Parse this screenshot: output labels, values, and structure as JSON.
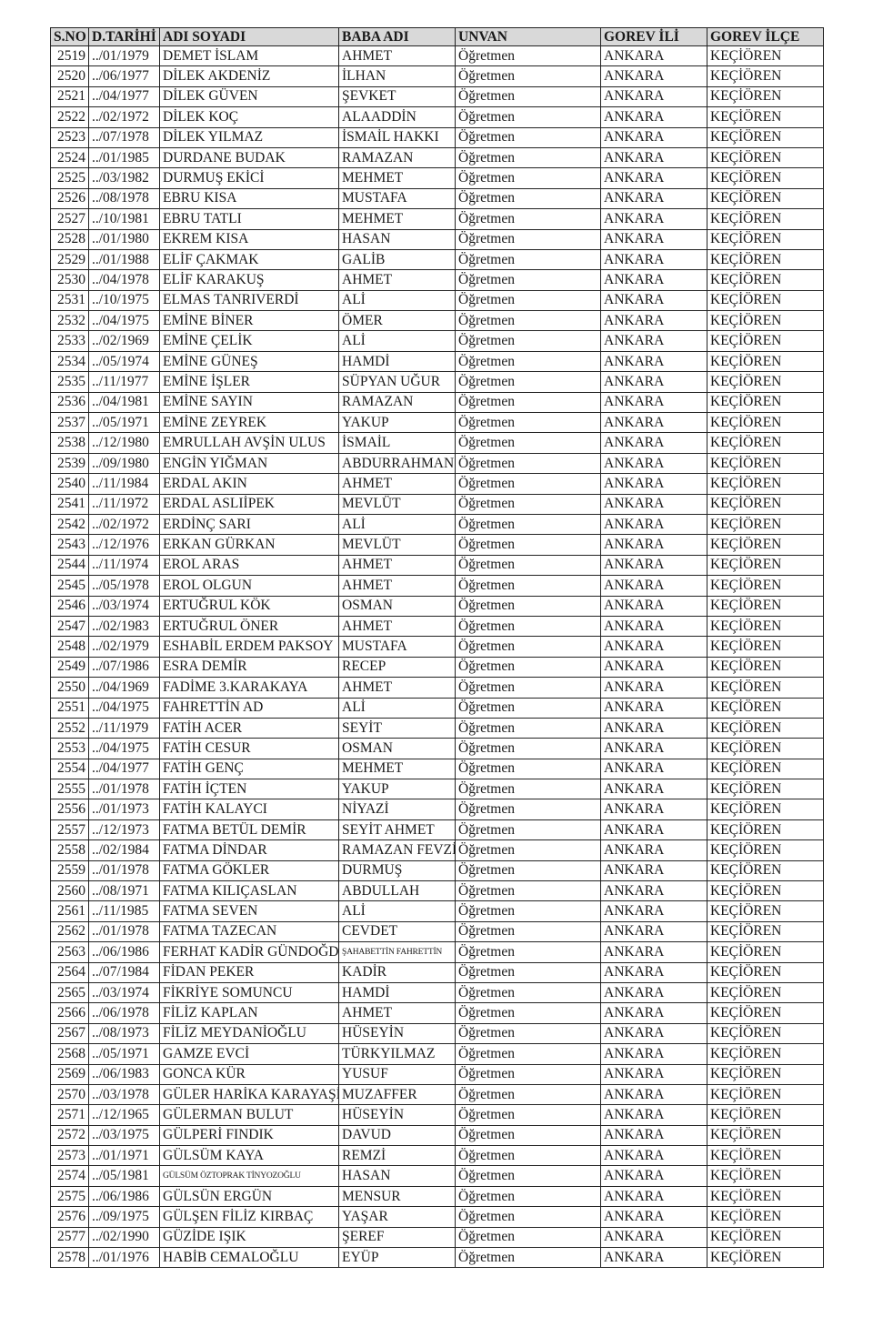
{
  "table": {
    "headers": [
      "S.NO",
      "D.TARİHİ",
      "ADI SOYADI",
      "BABA ADI",
      "UNVAN",
      "GOREV İLİ",
      "GOREV İLÇE"
    ],
    "rows": [
      [
        "2519",
        "../01/1979",
        "DEMET İSLAM",
        "AHMET",
        "Öğretmen",
        "ANKARA",
        "KEÇİÖREN"
      ],
      [
        "2520",
        "../06/1977",
        "DİLEK AKDENİZ",
        "İLHAN",
        "Öğretmen",
        "ANKARA",
        "KEÇİÖREN"
      ],
      [
        "2521",
        "../04/1977",
        "DİLEK GÜVEN",
        "ŞEVKET",
        "Öğretmen",
        "ANKARA",
        "KEÇİÖREN"
      ],
      [
        "2522",
        "../02/1972",
        "DİLEK KOÇ",
        "ALAADDİN",
        "Öğretmen",
        "ANKARA",
        "KEÇİÖREN"
      ],
      [
        "2523",
        "../07/1978",
        "DİLEK YILMAZ",
        "İSMAİL HAKKI",
        "Öğretmen",
        "ANKARA",
        "KEÇİÖREN"
      ],
      [
        "2524",
        "../01/1985",
        "DURDANE BUDAK",
        "RAMAZAN",
        "Öğretmen",
        "ANKARA",
        "KEÇİÖREN"
      ],
      [
        "2525",
        "../03/1982",
        "DURMUŞ EKİCİ",
        "MEHMET",
        "Öğretmen",
        "ANKARA",
        "KEÇİÖREN"
      ],
      [
        "2526",
        "../08/1978",
        "EBRU KISA",
        "MUSTAFA",
        "Öğretmen",
        "ANKARA",
        "KEÇİÖREN"
      ],
      [
        "2527",
        "../10/1981",
        "EBRU TATLI",
        "MEHMET",
        "Öğretmen",
        "ANKARA",
        "KEÇİÖREN"
      ],
      [
        "2528",
        "../01/1980",
        "EKREM KISA",
        "HASAN",
        "Öğretmen",
        "ANKARA",
        "KEÇİÖREN"
      ],
      [
        "2529",
        "../01/1988",
        "ELİF ÇAKMAK",
        "GALİB",
        "Öğretmen",
        "ANKARA",
        "KEÇİÖREN"
      ],
      [
        "2530",
        "../04/1978",
        "ELİF KARAKUŞ",
        "AHMET",
        "Öğretmen",
        "ANKARA",
        "KEÇİÖREN"
      ],
      [
        "2531",
        "../10/1975",
        "ELMAS TANRIVERDİ",
        "ALİ",
        "Öğretmen",
        "ANKARA",
        "KEÇİÖREN"
      ],
      [
        "2532",
        "../04/1975",
        "EMİNE BİNER",
        "ÖMER",
        "Öğretmen",
        "ANKARA",
        "KEÇİÖREN"
      ],
      [
        "2533",
        "../02/1969",
        "EMİNE ÇELİK",
        "ALİ",
        "Öğretmen",
        "ANKARA",
        "KEÇİÖREN"
      ],
      [
        "2534",
        "../05/1974",
        "EMİNE GÜNEŞ",
        "HAMDİ",
        "Öğretmen",
        "ANKARA",
        "KEÇİÖREN"
      ],
      [
        "2535",
        "../11/1977",
        "EMİNE İŞLER",
        "SÜPYAN UĞUR",
        "Öğretmen",
        "ANKARA",
        "KEÇİÖREN"
      ],
      [
        "2536",
        "../04/1981",
        "EMİNE SAYIN",
        "RAMAZAN",
        "Öğretmen",
        "ANKARA",
        "KEÇİÖREN"
      ],
      [
        "2537",
        "../05/1971",
        "EMİNE ZEYREK",
        "YAKUP",
        "Öğretmen",
        "ANKARA",
        "KEÇİÖREN"
      ],
      [
        "2538",
        "../12/1980",
        "EMRULLAH AVŞİN ULUS",
        "İSMAİL",
        "Öğretmen",
        "ANKARA",
        "KEÇİÖREN"
      ],
      [
        "2539",
        "../09/1980",
        "ENGİN YIĞMAN",
        "ABDURRAHMAN",
        "Öğretmen",
        "ANKARA",
        "KEÇİÖREN"
      ],
      [
        "2540",
        "../11/1984",
        "ERDAL AKIN",
        "AHMET",
        "Öğretmen",
        "ANKARA",
        "KEÇİÖREN"
      ],
      [
        "2541",
        "../11/1972",
        "ERDAL ASLIİPEK",
        "MEVLÜT",
        "Öğretmen",
        "ANKARA",
        "KEÇİÖREN"
      ],
      [
        "2542",
        "../02/1972",
        "ERDİNÇ SARI",
        "ALİ",
        "Öğretmen",
        "ANKARA",
        "KEÇİÖREN"
      ],
      [
        "2543",
        "../12/1976",
        "ERKAN GÜRKAN",
        "MEVLÜT",
        "Öğretmen",
        "ANKARA",
        "KEÇİÖREN"
      ],
      [
        "2544",
        "../11/1974",
        "EROL ARAS",
        "AHMET",
        "Öğretmen",
        "ANKARA",
        "KEÇİÖREN"
      ],
      [
        "2545",
        "../05/1978",
        "EROL OLGUN",
        "AHMET",
        "Öğretmen",
        "ANKARA",
        "KEÇİÖREN"
      ],
      [
        "2546",
        "../03/1974",
        "ERTUĞRUL KÖK",
        "OSMAN",
        "Öğretmen",
        "ANKARA",
        "KEÇİÖREN"
      ],
      [
        "2547",
        "../02/1983",
        "ERTUĞRUL ÖNER",
        "AHMET",
        "Öğretmen",
        "ANKARA",
        "KEÇİÖREN"
      ],
      [
        "2548",
        "../02/1979",
        "ESHABİL ERDEM PAKSOY",
        "MUSTAFA",
        "Öğretmen",
        "ANKARA",
        "KEÇİÖREN"
      ],
      [
        "2549",
        "../07/1986",
        "ESRA DEMİR",
        "RECEP",
        "Öğretmen",
        "ANKARA",
        "KEÇİÖREN"
      ],
      [
        "2550",
        "../04/1969",
        "FADİME 3.KARAKAYA",
        "AHMET",
        "Öğretmen",
        "ANKARA",
        "KEÇİÖREN"
      ],
      [
        "2551",
        "../04/1975",
        "FAHRETTİN AD",
        "ALİ",
        "Öğretmen",
        "ANKARA",
        "KEÇİÖREN"
      ],
      [
        "2552",
        "../11/1979",
        "FATİH ACER",
        "SEYİT",
        "Öğretmen",
        "ANKARA",
        "KEÇİÖREN"
      ],
      [
        "2553",
        "../04/1975",
        "FATİH CESUR",
        "OSMAN",
        "Öğretmen",
        "ANKARA",
        "KEÇİÖREN"
      ],
      [
        "2554",
        "../04/1977",
        "FATİH GENÇ",
        "MEHMET",
        "Öğretmen",
        "ANKARA",
        "KEÇİÖREN"
      ],
      [
        "2555",
        "../01/1978",
        "FATİH İÇTEN",
        "YAKUP",
        "Öğretmen",
        "ANKARA",
        "KEÇİÖREN"
      ],
      [
        "2556",
        "../01/1973",
        "FATİH KALAYCI",
        "NİYAZİ",
        "Öğretmen",
        "ANKARA",
        "KEÇİÖREN"
      ],
      [
        "2557",
        "../12/1973",
        "FATMA BETÜL DEMİR",
        "SEYİT AHMET",
        "Öğretmen",
        "ANKARA",
        "KEÇİÖREN"
      ],
      [
        "2558",
        "../02/1984",
        "FATMA DİNDAR",
        "RAMAZAN FEVZİ",
        "Öğretmen",
        "ANKARA",
        "KEÇİÖREN"
      ],
      [
        "2559",
        "../01/1978",
        "FATMA GÖKLER",
        "DURMUŞ",
        "Öğretmen",
        "ANKARA",
        "KEÇİÖREN"
      ],
      [
        "2560",
        "../08/1971",
        "FATMA KILIÇASLAN",
        "ABDULLAH",
        "Öğretmen",
        "ANKARA",
        "KEÇİÖREN"
      ],
      [
        "2561",
        "../11/1985",
        "FATMA SEVEN",
        "ALİ",
        "Öğretmen",
        "ANKARA",
        "KEÇİÖREN"
      ],
      [
        "2562",
        "../01/1978",
        "FATMA TAZECAN",
        "CEVDET",
        "Öğretmen",
        "ANKARA",
        "KEÇİÖREN"
      ],
      [
        "2563",
        "../06/1986",
        "FERHAT KADİR GÜNDOĞDU",
        "ŞAHABETTİN FAHRETTİN",
        "Öğretmen",
        "ANKARA",
        "KEÇİÖREN"
      ],
      [
        "2564",
        "../07/1984",
        "FİDAN PEKER",
        "KADİR",
        "Öğretmen",
        "ANKARA",
        "KEÇİÖREN"
      ],
      [
        "2565",
        "../03/1974",
        "FİKRİYE SOMUNCU",
        "HAMDİ",
        "Öğretmen",
        "ANKARA",
        "KEÇİÖREN"
      ],
      [
        "2566",
        "../06/1978",
        "FİLİZ KAPLAN",
        "AHMET",
        "Öğretmen",
        "ANKARA",
        "KEÇİÖREN"
      ],
      [
        "2567",
        "../08/1973",
        "FİLİZ MEYDANİOĞLU",
        "HÜSEYİN",
        "Öğretmen",
        "ANKARA",
        "KEÇİÖREN"
      ],
      [
        "2568",
        "../05/1971",
        "GAMZE EVCİ",
        "TÜRKYILMAZ",
        "Öğretmen",
        "ANKARA",
        "KEÇİÖREN"
      ],
      [
        "2569",
        "../06/1983",
        "GONCA KÜR",
        "YUSUF",
        "Öğretmen",
        "ANKARA",
        "KEÇİÖREN"
      ],
      [
        "2570",
        "../03/1978",
        "GÜLER HARİKA KARAYAŞİ",
        "MUZAFFER",
        "Öğretmen",
        "ANKARA",
        "KEÇİÖREN"
      ],
      [
        "2571",
        "../12/1965",
        "GÜLERMAN BULUT",
        "HÜSEYİN",
        "Öğretmen",
        "ANKARA",
        "KEÇİÖREN"
      ],
      [
        "2572",
        "../03/1975",
        "GÜLPERİ FINDIK",
        "DAVUD",
        "Öğretmen",
        "ANKARA",
        "KEÇİÖREN"
      ],
      [
        "2573",
        "../01/1971",
        "GÜLSÜM KAYA",
        "REMZİ",
        "Öğretmen",
        "ANKARA",
        "KEÇİÖREN"
      ],
      [
        "2574",
        "../05/1981",
        "GÜLSÜM ÖZTOPRAK TİNYOZOĞLU",
        "HASAN",
        "Öğretmen",
        "ANKARA",
        "KEÇİÖREN"
      ],
      [
        "2575",
        "../06/1986",
        "GÜLSÜN ERGÜN",
        "MENSUR",
        "Öğretmen",
        "ANKARA",
        "KEÇİÖREN"
      ],
      [
        "2576",
        "../09/1975",
        "GÜLŞEN FİLİZ KIRBAÇ",
        "YAŞAR",
        "Öğretmen",
        "ANKARA",
        "KEÇİÖREN"
      ],
      [
        "2577",
        "../02/1990",
        "GÜZİDE IŞIK",
        "ŞEREF",
        "Öğretmen",
        "ANKARA",
        "KEÇİÖREN"
      ],
      [
        "2578",
        "../01/1976",
        "HABİB CEMALOĞLU",
        "EYÜP",
        "Öğretmen",
        "ANKARA",
        "KEÇİÖREN"
      ]
    ]
  }
}
